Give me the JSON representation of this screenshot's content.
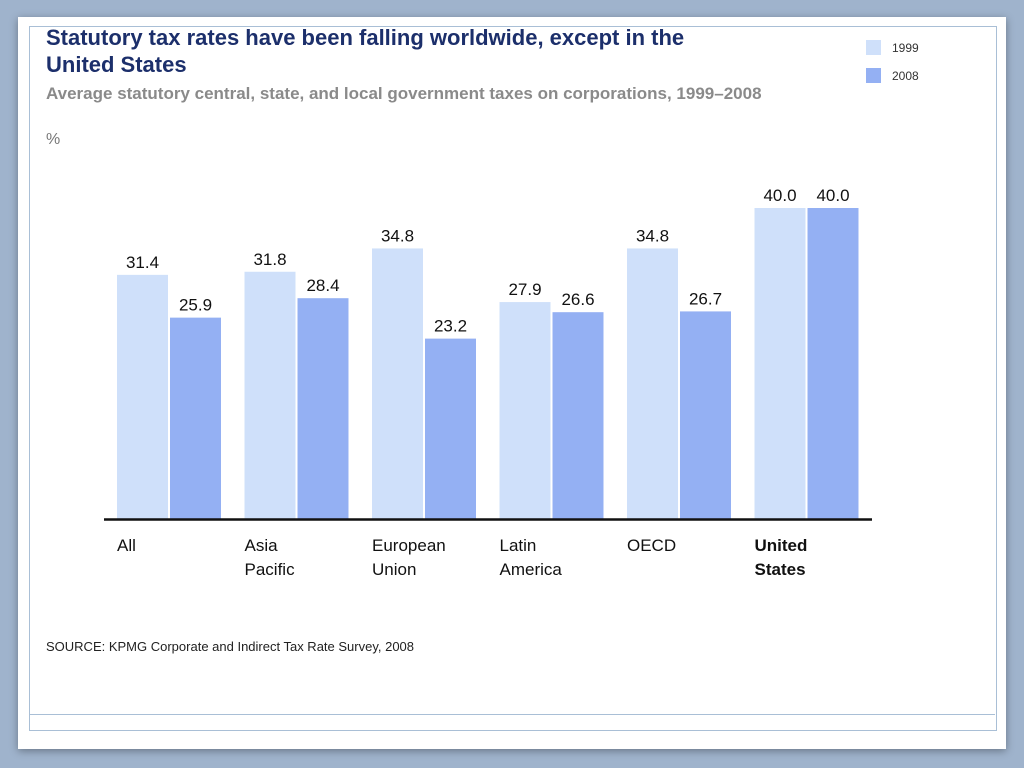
{
  "title": "Statutory tax rates have been falling worldwide, except in the United States",
  "subtitle": "Average statutory central, state, and local government taxes on corporations, 1999–2008",
  "unit": "%",
  "source": "SOURCE: KPMG Corporate and Indirect Tax Rate Survey, 2008",
  "colors": {
    "series_1999": "#cfe0fa",
    "series_2008": "#94b0f3",
    "title": "#1c2f6b"
  },
  "chart_data": {
    "type": "bar",
    "title": "Statutory tax rates have been falling worldwide, except in the United States",
    "subtitle": "Average statutory central, state, and local government taxes on corporations, 1999–2008",
    "ylabel": "%",
    "categories": [
      [
        "All"
      ],
      [
        "Asia",
        "Pacific"
      ],
      [
        "European",
        "Union"
      ],
      [
        "Latin",
        "America"
      ],
      [
        "OECD"
      ],
      [
        "United",
        "States"
      ]
    ],
    "bold_categories": [
      5
    ],
    "series": [
      {
        "name": "1999",
        "values": [
          31.4,
          31.8,
          34.8,
          27.9,
          34.8,
          40.0
        ]
      },
      {
        "name": "2008",
        "values": [
          25.9,
          28.4,
          23.2,
          26.6,
          26.7,
          40.0
        ]
      }
    ],
    "ylim": [
      0,
      40
    ],
    "grid": false,
    "legend": "top-right"
  }
}
